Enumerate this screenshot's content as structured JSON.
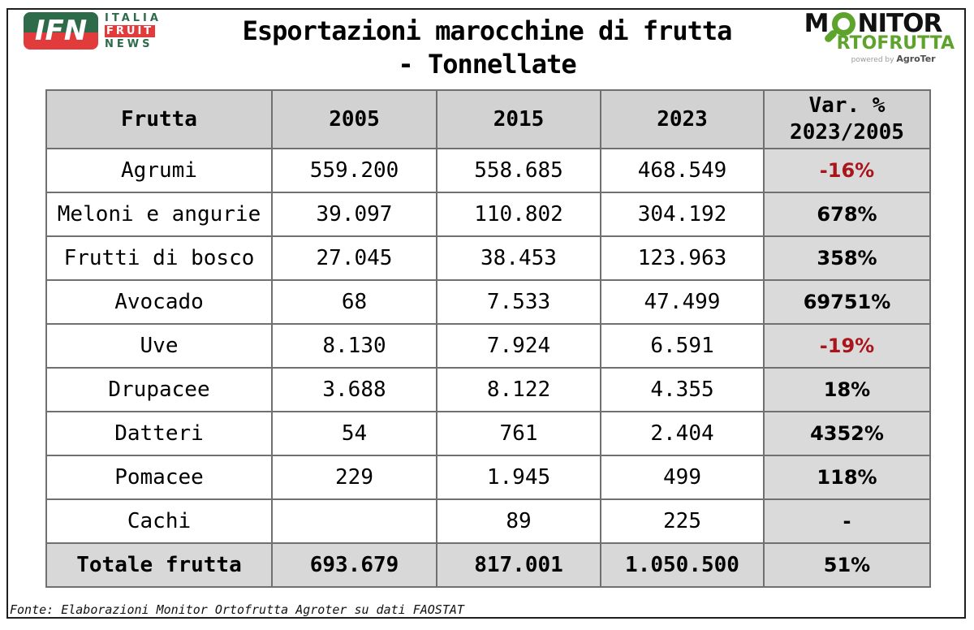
{
  "header": {
    "title_line1": "Esportazioni marocchine di frutta",
    "title_line2": "- Tonnellate",
    "ifn_logo": {
      "badge": "IFN",
      "italia": "ITALIA",
      "fruit": "FRUIT",
      "news": "NEWS",
      "green": "#2e6b4a",
      "red": "#e23b3c"
    },
    "monitor_logo": {
      "m": "M",
      "nitor": "NITOR",
      "line2": "RTOFRUTTA",
      "powered_by": "powered by",
      "agroter": "AgroTer",
      "green": "#5ea32b",
      "black": "#111111"
    }
  },
  "table": {
    "col_frutta": "Frutta",
    "col_2005": "2005",
    "col_2015": "2015",
    "col_2023": "2023",
    "var_header": {
      "line1": "Var. %",
      "line2": "2023/2005"
    },
    "negative_color": "#a9151b",
    "header_bg": "#d2d2d2",
    "var_col_bg": "#dadada",
    "total_row_bg": "#d8d8d8",
    "rows": [
      {
        "frutta": "Agrumi",
        "y2005": "559.200",
        "y2015": "558.685",
        "y2023": "468.549",
        "var": "-16%",
        "var_negative": true,
        "is_total": false
      },
      {
        "frutta": "Meloni e angurie",
        "y2005": "39.097",
        "y2015": "110.802",
        "y2023": "304.192",
        "var": "678%",
        "var_negative": false,
        "is_total": false
      },
      {
        "frutta": "Frutti di bosco",
        "y2005": "27.045",
        "y2015": "38.453",
        "y2023": "123.963",
        "var": "358%",
        "var_negative": false,
        "is_total": false
      },
      {
        "frutta": "Avocado",
        "y2005": "68",
        "y2015": "7.533",
        "y2023": "47.499",
        "var": "69751%",
        "var_negative": false,
        "is_total": false
      },
      {
        "frutta": "Uve",
        "y2005": "8.130",
        "y2015": "7.924",
        "y2023": "6.591",
        "var": "-19%",
        "var_negative": true,
        "is_total": false
      },
      {
        "frutta": "Drupacee",
        "y2005": "3.688",
        "y2015": "8.122",
        "y2023": "4.355",
        "var": "18%",
        "var_negative": false,
        "is_total": false
      },
      {
        "frutta": "Datteri",
        "y2005": "54",
        "y2015": "761",
        "y2023": "2.404",
        "var": "4352%",
        "var_negative": false,
        "is_total": false
      },
      {
        "frutta": "Pomacee",
        "y2005": "229",
        "y2015": "1.945",
        "y2023": "499",
        "var": "118%",
        "var_negative": false,
        "is_total": false
      },
      {
        "frutta": "Cachi",
        "y2005": "",
        "y2015": "89",
        "y2023": "225",
        "var": "-",
        "var_negative": false,
        "is_total": false
      },
      {
        "frutta": "Totale frutta",
        "y2005": "693.679",
        "y2015": "817.001",
        "y2023": "1.050.500",
        "var": "51%",
        "var_negative": false,
        "is_total": true
      }
    ]
  },
  "footer": {
    "source": "Fonte: Elaborazioni Monitor Ortofrutta Agroter su dati FAOSTAT"
  },
  "chart_data": {
    "type": "table",
    "title": "Esportazioni marocchine di frutta - Tonnellate",
    "categories": [
      "Agrumi",
      "Meloni e angurie",
      "Frutti di bosco",
      "Avocado",
      "Uve",
      "Drupacee",
      "Datteri",
      "Pomacee",
      "Cachi"
    ],
    "series": [
      {
        "name": "2005",
        "values": [
          559200,
          39097,
          27045,
          68,
          8130,
          3688,
          54,
          229,
          null
        ]
      },
      {
        "name": "2015",
        "values": [
          558685,
          110802,
          38453,
          7533,
          7924,
          8122,
          761,
          1945,
          89
        ]
      },
      {
        "name": "2023",
        "values": [
          468549,
          304192,
          123963,
          47499,
          6591,
          4355,
          2404,
          499,
          225
        ]
      }
    ],
    "var_pct_2023_2005": [
      "-16%",
      "678%",
      "358%",
      "69751%",
      "-19%",
      "18%",
      "4352%",
      "118%",
      "-"
    ],
    "totals": {
      "name": "Totale frutta",
      "2005": 693679,
      "2015": 817001,
      "2023": 1050500,
      "var": "51%"
    },
    "source": "Fonte: Elaborazioni Monitor Ortofrutta Agroter su dati FAOSTAT"
  }
}
